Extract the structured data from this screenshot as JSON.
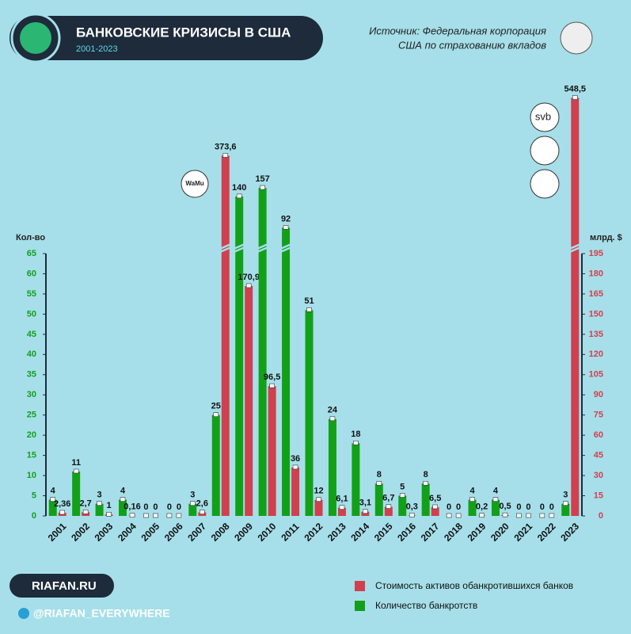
{
  "chart_data": {
    "type": "bar",
    "title": "БАНКОВСКИЕ КРИЗИСЫ В США",
    "subtitle": "2001-2023",
    "source": [
      "Источник: Федеральная корпорация",
      "США по страхованию вкладов"
    ],
    "ylabel": "Кол-во",
    "y2label": "млрд. $",
    "categories": [
      "2001",
      "2002",
      "2003",
      "2004",
      "2005",
      "2006",
      "2007",
      "2008",
      "2009",
      "2010",
      "2011",
      "2012",
      "2013",
      "2014",
      "2015",
      "2016",
      "2017",
      "2018",
      "2019",
      "2020",
      "2021",
      "2022",
      "2023"
    ],
    "series": [
      {
        "name": "Стоимость активов обанкротившихся банков",
        "color": "#d1404f",
        "axis": "y2",
        "values": [
          2.36,
          2.7,
          1,
          0.16,
          0,
          0,
          2.6,
          373.6,
          170.9,
          96.5,
          36,
          12,
          6.1,
          3.1,
          6.7,
          0.3,
          6.5,
          0,
          0.2,
          0.5,
          0,
          0,
          548.5
        ],
        "value_labels": [
          "2,36",
          "2,7",
          "1",
          "0,16",
          "0",
          "0",
          "2,6",
          "373,6",
          "170,9",
          "96,5",
          "36",
          "12",
          "6,1",
          "3,1",
          "6,7",
          "0,3",
          "6,5",
          "0",
          "0,2",
          "0,5",
          "0",
          "0",
          "548,5"
        ]
      },
      {
        "name": "Количество банкротств",
        "color": "#13a019",
        "values": [
          4,
          11,
          3,
          4,
          0,
          0,
          3,
          25,
          140,
          157,
          92,
          51,
          24,
          18,
          8,
          5,
          8,
          0,
          4,
          4,
          0,
          0,
          3
        ]
      }
    ],
    "ylim": [
      0,
      65
    ],
    "yticks": [
      0,
      5,
      10,
      15,
      20,
      25,
      30,
      35,
      40,
      45,
      50,
      55,
      60,
      65
    ],
    "y2lim": [
      0,
      195
    ],
    "y2ticks": [
      0,
      15,
      30,
      45,
      60,
      75,
      90,
      105,
      120,
      135,
      150,
      165,
      180,
      195
    ],
    "annotations": [
      "WaMu",
      "svb"
    ],
    "footer": [
      "RIAFAN.RU",
      "@RIAFAN_EVERYWHERE"
    ]
  }
}
